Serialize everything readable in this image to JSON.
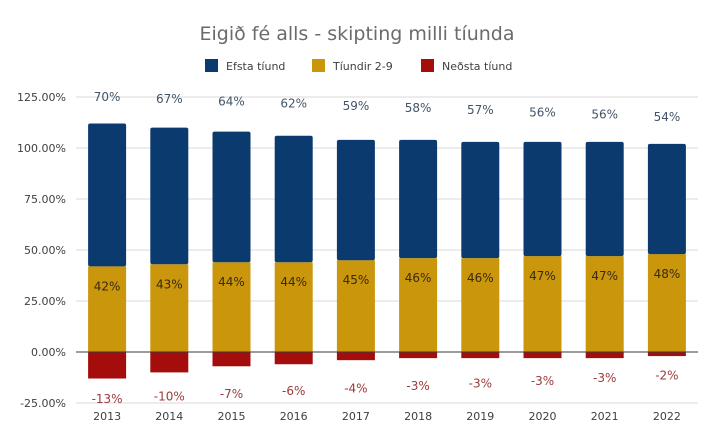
{
  "chart_data": {
    "type": "bar",
    "stacked": true,
    "title": "Eigið fé alls - skipting milli tíunda",
    "xlabel": "",
    "ylabel": "",
    "categories": [
      "2013",
      "2014",
      "2015",
      "2016",
      "2017",
      "2018",
      "2019",
      "2020",
      "2021",
      "2022"
    ],
    "series": [
      {
        "name": "Neðsta tíund",
        "color": "#a50d0d",
        "values": [
          -13,
          -10,
          -7,
          -6,
          -4,
          -3,
          -3,
          -3,
          -3,
          -2
        ]
      },
      {
        "name": "Tíundir 2-9",
        "color": "#c9960c",
        "values": [
          42,
          43,
          44,
          44,
          45,
          46,
          46,
          47,
          47,
          48
        ]
      },
      {
        "name": "Efsta tíund",
        "color": "#0b3a6e",
        "values": [
          70,
          67,
          64,
          62,
          59,
          58,
          57,
          56,
          56,
          54
        ]
      }
    ],
    "legend_order": [
      "Efsta tíund",
      "Tíundir 2-9",
      "Neðsta tíund"
    ],
    "ylim": [
      -25,
      125
    ],
    "yticks": [
      -25,
      0,
      25,
      50,
      75,
      100,
      125
    ],
    "ytick_labels": [
      "-25.00%",
      "0.00%",
      "25.00%",
      "50.00%",
      "75.00%",
      "100.00%",
      "125.00%"
    ],
    "grid": true,
    "legend_position": "top"
  }
}
